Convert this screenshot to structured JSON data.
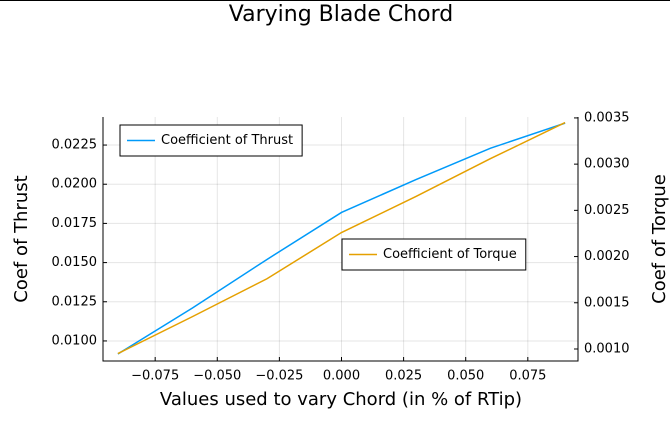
{
  "chart_data": {
    "type": "line",
    "title": "Varying Blade Chord",
    "xlabel": "Values used to vary Chord (in % of RTip)",
    "ylabel": "Coef of Thrust",
    "y2label": "Coef of Torque",
    "x": [
      -0.09,
      -0.06,
      -0.03,
      0,
      0.03,
      0.06,
      0.09
    ],
    "series": [
      {
        "name": "Coefficient of Thrust",
        "color": "#009af9",
        "axis": "y",
        "legend": "topleft",
        "values": [
          0.00917,
          0.0121,
          0.0152,
          0.0182,
          0.0203,
          0.0223,
          0.0239
        ]
      },
      {
        "name": "Coefficient of Torque",
        "color": "#e5a000",
        "axis": "y2",
        "legend": "right",
        "values": [
          0.00095,
          0.00135,
          0.00176,
          0.00226,
          0.00265,
          0.00306,
          0.00345
        ]
      }
    ],
    "xlim": [
      -0.096,
      0.0952
    ],
    "xticks": [
      {
        "value": -0.075,
        "label": "−0.075"
      },
      {
        "value": -0.05,
        "label": "−0.050"
      },
      {
        "value": -0.025,
        "label": "−0.025"
      },
      {
        "value": 0,
        "label": "0.000"
      },
      0.025,
      {
        "value": 0.05,
        "label": "0.050"
      },
      0.075
    ],
    "ylim": [
      0.00872,
      0.02429
    ],
    "yticks": [
      {
        "value": 0.01,
        "label": "0.0100"
      },
      0.0125,
      {
        "value": 0.015,
        "label": "0.0150"
      },
      0.0175,
      {
        "value": 0.02,
        "label": "0.0200"
      },
      0.0225
    ],
    "y2lim": [
      0.00087,
      0.00351
    ],
    "y2ticks": [
      {
        "value": 0.001,
        "label": "0.0010"
      },
      0.0015,
      {
        "value": 0.002,
        "label": "0.0020"
      },
      0.0025,
      {
        "value": 0.003,
        "label": "0.0030"
      },
      0.0035
    ],
    "grid": true
  }
}
